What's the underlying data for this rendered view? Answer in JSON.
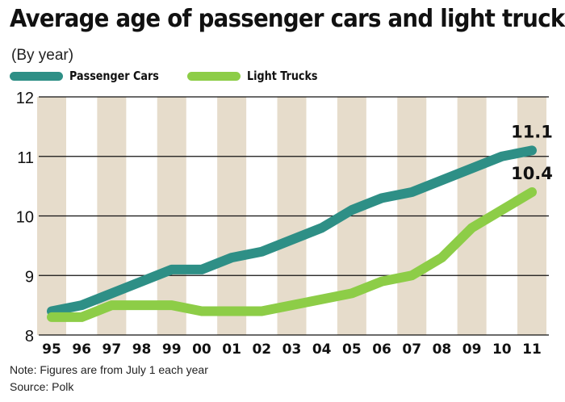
{
  "colors": {
    "passenger": "#2e8f86",
    "trucks": "#8dcd47",
    "band": "#e6dccb"
  },
  "chart_data": {
    "type": "line",
    "title": "Average age of passenger cars and light trucks",
    "subtitle": "(By year)",
    "categories": [
      "95",
      "96",
      "97",
      "98",
      "99",
      "00",
      "01",
      "02",
      "03",
      "04",
      "05",
      "06",
      "07",
      "08",
      "09",
      "10",
      "11"
    ],
    "series": [
      {
        "name": "Passenger Cars",
        "values": [
          8.4,
          8.5,
          8.7,
          8.9,
          9.1,
          9.1,
          9.3,
          9.4,
          9.6,
          9.8,
          10.1,
          10.3,
          10.4,
          10.6,
          10.8,
          11.0,
          11.1
        ]
      },
      {
        "name": "Light Trucks",
        "values": [
          8.3,
          8.3,
          8.5,
          8.5,
          8.5,
          8.4,
          8.4,
          8.4,
          8.5,
          8.6,
          8.7,
          8.9,
          9.0,
          9.3,
          9.8,
          10.1,
          10.4
        ]
      }
    ],
    "end_labels": [
      "11.1",
      "10.4"
    ],
    "ylim": [
      8,
      12
    ],
    "yticks": [
      8,
      9,
      10,
      11,
      12
    ],
    "xlabel": "",
    "ylabel": "",
    "grid": true,
    "legend": "top-left"
  },
  "footnotes": {
    "note": "Note: Figures are from July 1 each year",
    "source": "Source: Polk"
  }
}
